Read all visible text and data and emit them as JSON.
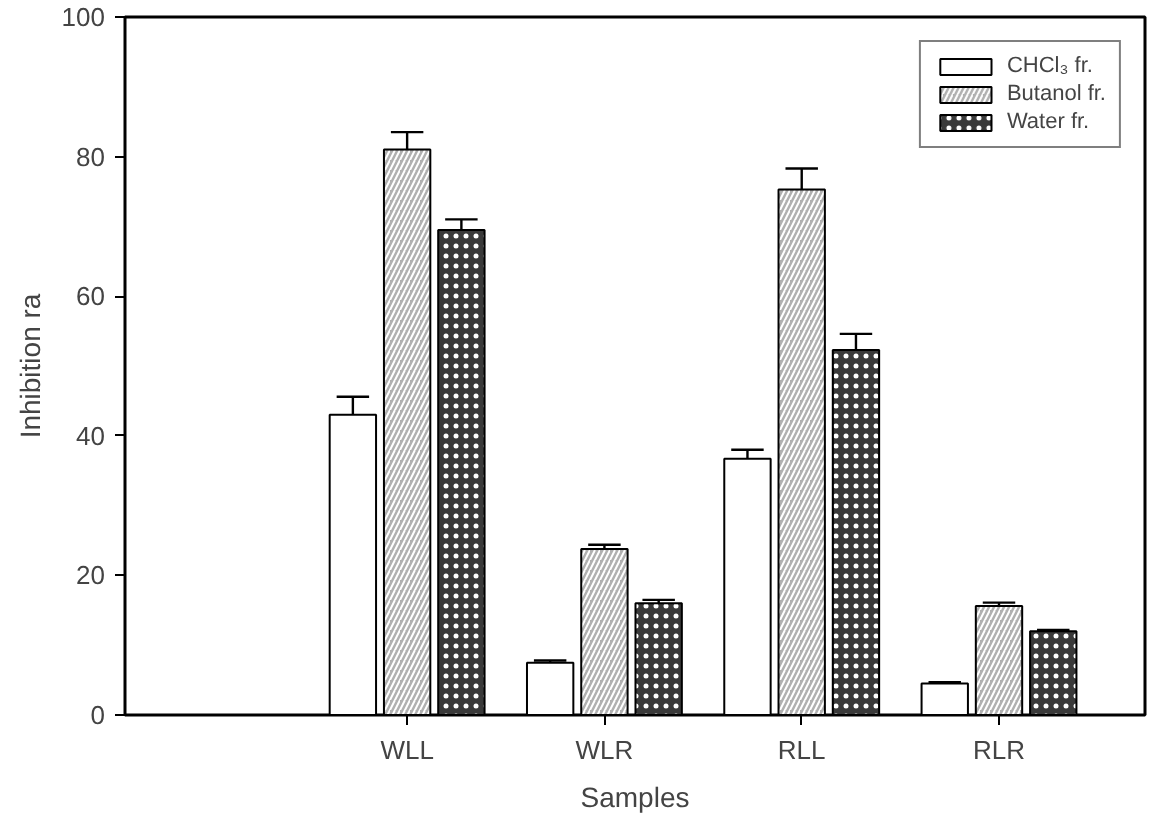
{
  "chart_data": {
    "type": "bar",
    "xlabel": "Samples",
    "ylabel": "Inhibition ra",
    "categories": [
      "WLL",
      "WLR",
      "RLL",
      "RLR"
    ],
    "series": [
      {
        "name": "CHCl₃ fr.",
        "color": "#ffffff",
        "values": [
          43,
          7.5,
          36.7,
          4.5
        ],
        "errors": [
          2.6,
          0.3,
          1.3,
          0.2
        ]
      },
      {
        "name": "Butanol fr.",
        "color": "#b0b0b0",
        "values": [
          81,
          23.8,
          75.3,
          15.6
        ],
        "errors": [
          2.5,
          0.6,
          3,
          0.5
        ]
      },
      {
        "name": "Water fr.",
        "color": "#3a3a3a",
        "values": [
          69.5,
          16,
          52.3,
          12
        ],
        "errors": [
          1.5,
          0.5,
          2.3,
          0.2
        ]
      }
    ],
    "ylim": [
      0,
      100
    ],
    "yticks": [
      0,
      20,
      40,
      60,
      80,
      100
    ],
    "grid": false,
    "legend": "top right"
  }
}
